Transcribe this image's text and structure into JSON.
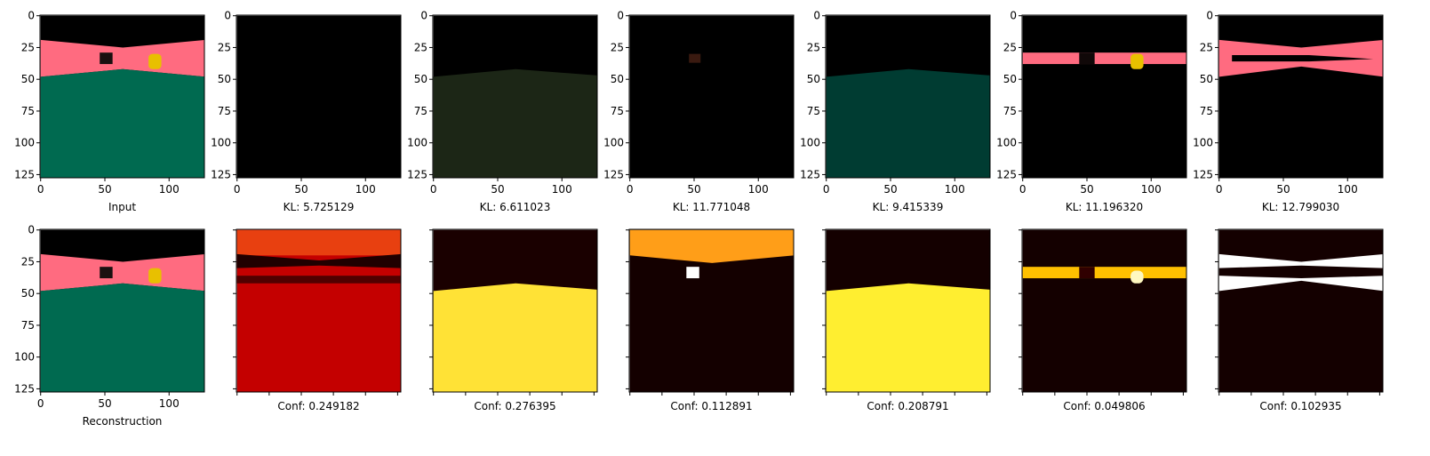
{
  "xlim": [
    -0.5,
    127.5
  ],
  "ylim": [
    127.5,
    -0.5
  ],
  "xticks": [
    0,
    50,
    100
  ],
  "yticks": [
    0,
    25,
    50,
    75,
    100,
    125
  ],
  "heatmap_ticks": [
    0,
    25,
    50,
    75,
    100,
    125
  ],
  "top_row": [
    "Input",
    "KL: 5.725129",
    "KL: 6.611023",
    "KL: 11.771048",
    "KL: 9.415339",
    "KL: 11.196320",
    "KL: 12.799030"
  ],
  "bottom_row": [
    "Reconstruction",
    "Conf: 0.249182",
    "Conf: 0.276395",
    "Conf: 0.112891",
    "Conf: 0.208791",
    "Conf: 0.049806",
    "Conf: 0.102935"
  ]
}
